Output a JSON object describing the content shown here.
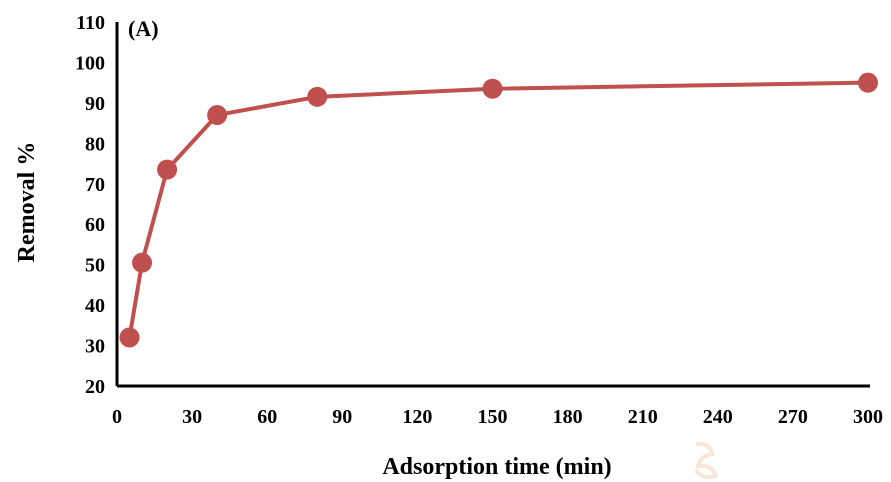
{
  "chart_data": {
    "type": "line",
    "panel_label": "(A)",
    "xlabel": "Adsorption time (min)",
    "ylabel": "Removal %",
    "xlim": [
      0,
      300
    ],
    "ylim": [
      20,
      110
    ],
    "xticks": [
      0,
      30,
      60,
      90,
      120,
      150,
      180,
      210,
      240,
      270,
      300
    ],
    "yticks": [
      20,
      30,
      40,
      50,
      60,
      70,
      80,
      90,
      100,
      110
    ],
    "grid": false,
    "series": [
      {
        "color": "#c0504d",
        "x": [
          5,
          10,
          20,
          40,
          80,
          150,
          300
        ],
        "y": [
          32,
          50.5,
          73.5,
          87,
          91.5,
          93.5,
          95
        ]
      }
    ]
  }
}
